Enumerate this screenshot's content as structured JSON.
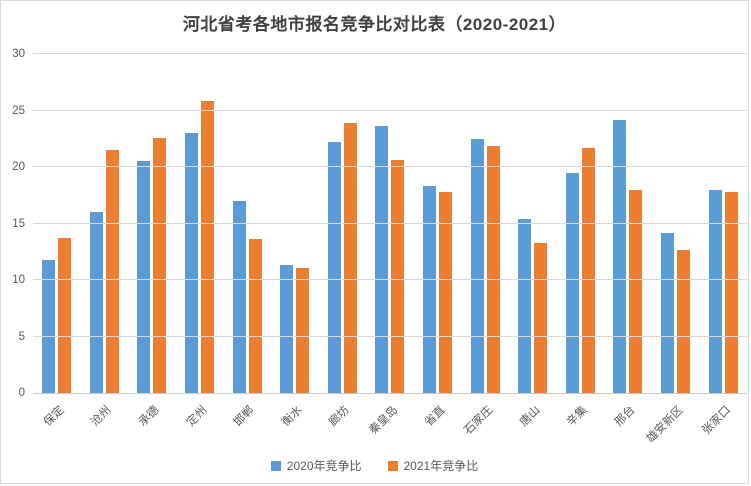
{
  "colors": {
    "series_2020": "#5B9BD5",
    "series_2021": "#ED7D31",
    "gridline": "#D9D9D9",
    "axis_line": "#C9C9C9",
    "axis_text": "#595959",
    "title_text": "#3F3F3F",
    "frame_border": "#D9D9D9",
    "background": "#FFFFFF"
  },
  "chart_data": {
    "type": "bar",
    "title": "河北省考各地市报名竞争比对比表（2020-2021）",
    "categories": [
      "保定",
      "沧州",
      "承德",
      "定州",
      "邯郸",
      "衡水",
      "廊坊",
      "秦皇岛",
      "省直",
      "石家庄",
      "唐山",
      "辛集",
      "邢台",
      "雄安新区",
      "张家口"
    ],
    "series": [
      {
        "name": "2020年竞争比",
        "color": "#5B9BD5",
        "values": [
          11.8,
          16.0,
          20.5,
          23.0,
          17.0,
          11.3,
          22.2,
          23.6,
          18.3,
          22.5,
          15.4,
          19.5,
          24.2,
          14.2,
          18.0
        ]
      },
      {
        "name": "2021年竞争比",
        "color": "#ED7D31",
        "values": [
          13.7,
          21.5,
          22.6,
          25.8,
          13.6,
          11.1,
          23.9,
          20.6,
          17.8,
          21.9,
          13.3,
          21.7,
          18.0,
          12.7,
          17.8
        ]
      }
    ],
    "xlabel": "",
    "ylabel": "",
    "ylim": [
      0,
      30
    ],
    "yticks": [
      0,
      5,
      10,
      15,
      20,
      25,
      30
    ],
    "grid": true,
    "legend_position": "bottom",
    "x_label_rotation_deg": 45
  }
}
